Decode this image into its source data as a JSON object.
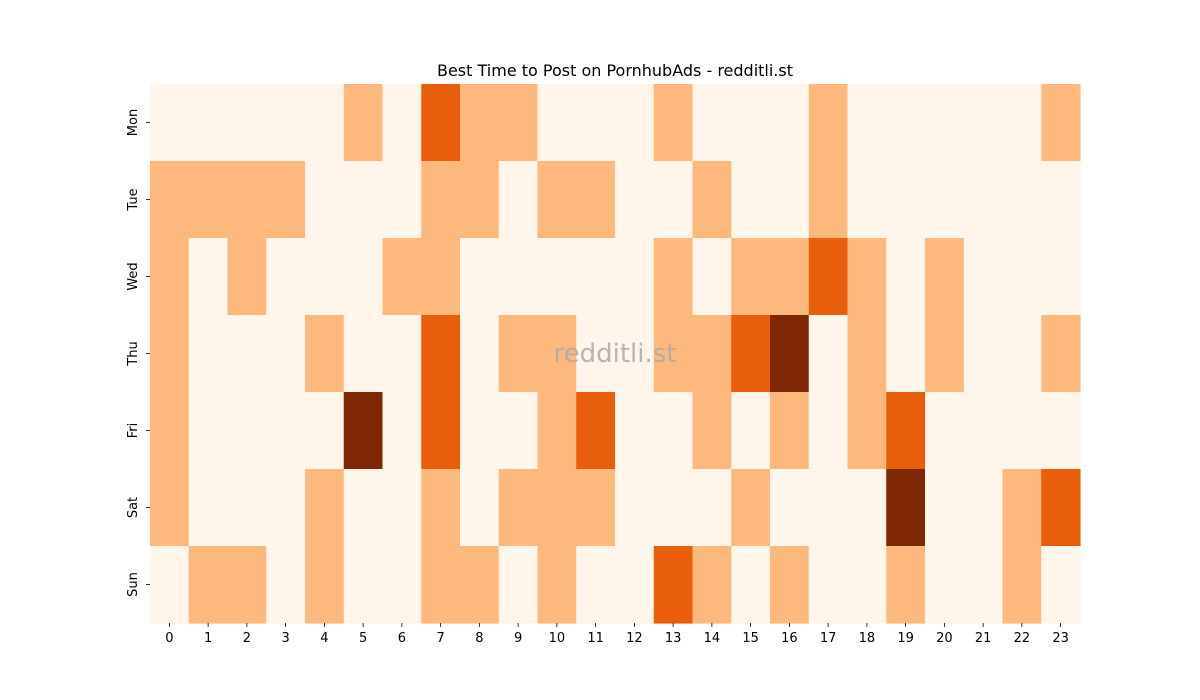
{
  "chart_data": {
    "type": "heatmap",
    "title": "Best Time to Post on PornhubAds - redditli.st",
    "watermark": "redditli.st",
    "xlabel": "",
    "ylabel": "",
    "x": [
      "0",
      "1",
      "2",
      "3",
      "4",
      "5",
      "6",
      "7",
      "8",
      "9",
      "10",
      "11",
      "12",
      "13",
      "14",
      "15",
      "16",
      "17",
      "18",
      "19",
      "20",
      "21",
      "22",
      "23"
    ],
    "y": [
      "Mon",
      "Tue",
      "Wed",
      "Thu",
      "Fri",
      "Sat",
      "Sun"
    ],
    "value_range": [
      0,
      3
    ],
    "colorbar": false,
    "colors": {
      "level_0": "#fff5eb",
      "level_1": "#fdb97d",
      "level_2": "#e95e0d",
      "level_3": "#7f2704"
    },
    "values": [
      [
        0,
        0,
        0,
        0,
        0,
        1,
        0,
        2,
        1,
        1,
        0,
        0,
        0,
        1,
        0,
        0,
        0,
        1,
        0,
        0,
        0,
        0,
        0,
        1
      ],
      [
        1,
        1,
        1,
        1,
        0,
        0,
        0,
        1,
        1,
        0,
        1,
        1,
        0,
        0,
        1,
        0,
        0,
        1,
        0,
        0,
        0,
        0,
        0,
        0
      ],
      [
        1,
        0,
        1,
        0,
        0,
        0,
        1,
        1,
        0,
        0,
        0,
        0,
        0,
        1,
        0,
        1,
        1,
        2,
        1,
        0,
        1,
        0,
        0,
        0
      ],
      [
        1,
        0,
        0,
        0,
        1,
        0,
        0,
        2,
        0,
        1,
        1,
        0,
        0,
        1,
        1,
        2,
        3,
        0,
        1,
        0,
        1,
        0,
        0,
        1
      ],
      [
        1,
        0,
        0,
        0,
        0,
        3,
        0,
        2,
        0,
        0,
        1,
        2,
        0,
        0,
        1,
        0,
        1,
        0,
        1,
        2,
        0,
        0,
        0,
        0
      ],
      [
        1,
        0,
        0,
        0,
        1,
        0,
        0,
        1,
        0,
        1,
        1,
        1,
        0,
        0,
        0,
        1,
        0,
        0,
        0,
        3,
        0,
        0,
        1,
        2
      ],
      [
        0,
        1,
        1,
        0,
        1,
        0,
        0,
        1,
        1,
        0,
        1,
        0,
        0,
        2,
        1,
        0,
        1,
        0,
        0,
        1,
        0,
        0,
        1,
        0
      ]
    ]
  }
}
